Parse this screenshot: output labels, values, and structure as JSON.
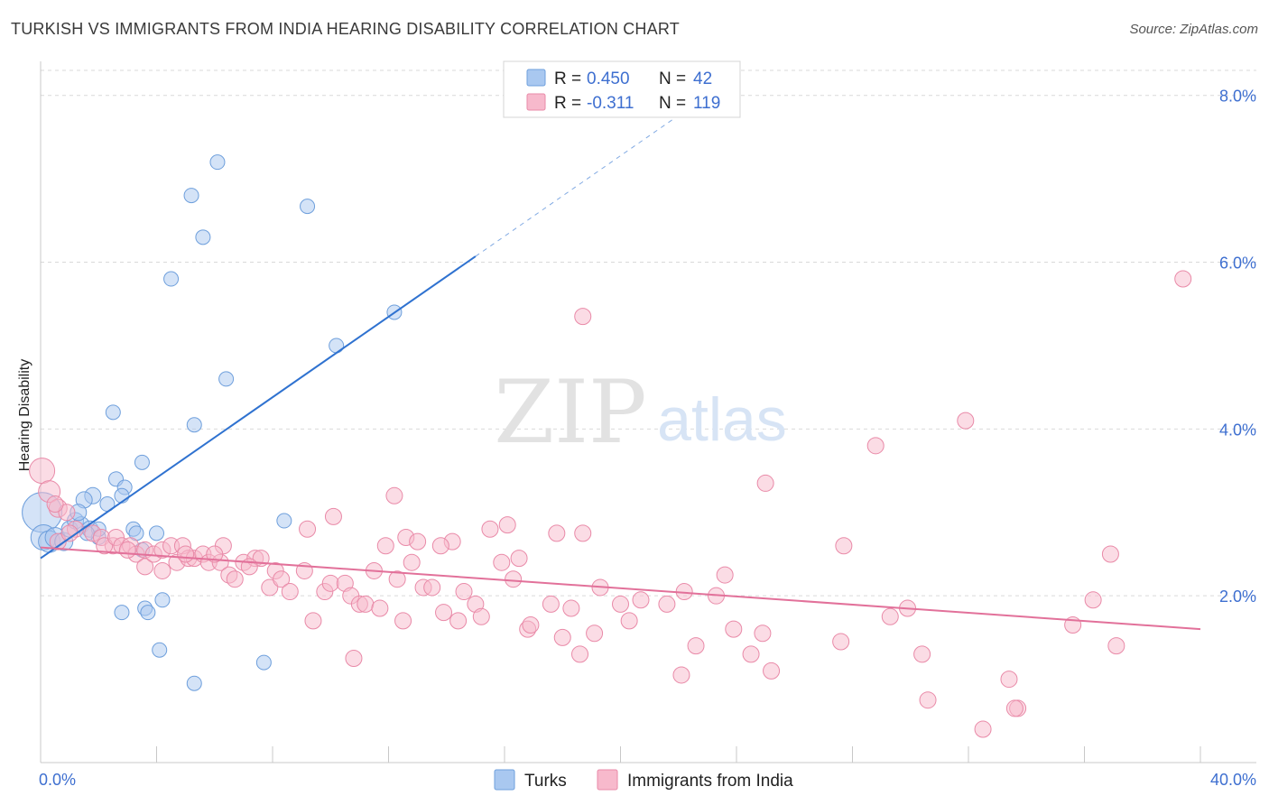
{
  "header": {
    "title": "TURKISH VS IMMIGRANTS FROM INDIA HEARING DISABILITY CORRELATION CHART",
    "source": "Source: ZipAtlas.com"
  },
  "watermark": {
    "zip": "ZIP",
    "atlas": "atlas"
  },
  "colors": {
    "blue_fill": "#a9c8f0",
    "blue_stroke": "#6e9fdc",
    "blue_line": "#2f72d0",
    "pink_fill": "#f7b9cc",
    "pink_stroke": "#e98aa8",
    "pink_line": "#e2719a",
    "axis_text": "#3e6fd0",
    "grid": "#d9d9d9"
  },
  "legend_box": {
    "rows": [
      {
        "r_label": "R = ",
        "r_value": "0.450",
        "n_label": "N = ",
        "n_value": "42",
        "series": "Turks"
      },
      {
        "r_label": "R = ",
        "r_value": "-0.311",
        "n_label": "N = ",
        "n_value": "119",
        "series": "Immigrants from India"
      }
    ]
  },
  "chart_data": {
    "type": "scatter",
    "title": "TURKISH VS IMMIGRANTS FROM INDIA HEARING DISABILITY CORRELATION CHART",
    "xlabel": "",
    "ylabel": "Hearing Disability",
    "xlim": [
      0,
      40
    ],
    "ylim": [
      0,
      8.3
    ],
    "x_tick_labels": [
      "0.0%",
      "40.0%"
    ],
    "y_ticks": [
      2,
      4,
      6,
      8
    ],
    "y_tick_labels": [
      "2.0%",
      "4.0%",
      "6.0%",
      "8.0%"
    ],
    "grid": true,
    "legend_position": "bottom-center",
    "series": [
      {
        "name": "Turks",
        "color": "#a9c8f0",
        "r": 0.45,
        "n": 42,
        "trend": {
          "x0": 0,
          "y0": 2.45,
          "x1": 15.0,
          "y1": 6.07,
          "dash_to_x": 22.5
        },
        "points": [
          [
            0.05,
            3.0,
            22
          ],
          [
            0.1,
            2.7,
            14
          ],
          [
            0.3,
            2.65,
            12
          ],
          [
            0.5,
            2.7,
            11
          ],
          [
            0.8,
            2.65,
            10
          ],
          [
            1.0,
            2.8,
            9
          ],
          [
            1.2,
            2.9,
            9
          ],
          [
            1.4,
            2.85,
            9
          ],
          [
            1.7,
            2.8,
            9
          ],
          [
            1.8,
            3.2,
            9
          ],
          [
            1.5,
            3.15,
            9
          ],
          [
            1.3,
            3.0,
            9
          ],
          [
            2.0,
            2.7,
            8
          ],
          [
            2.3,
            3.1,
            8
          ],
          [
            2.6,
            3.4,
            8
          ],
          [
            2.9,
            3.3,
            8
          ],
          [
            2.8,
            3.2,
            8
          ],
          [
            3.2,
            2.8,
            8
          ],
          [
            3.3,
            2.75,
            8
          ],
          [
            3.5,
            2.55,
            8
          ],
          [
            4.0,
            2.75,
            8
          ],
          [
            3.5,
            3.6,
            8
          ],
          [
            2.5,
            4.2,
            8
          ],
          [
            3.6,
            1.85,
            8
          ],
          [
            3.7,
            1.8,
            8
          ],
          [
            2.8,
            1.8,
            8
          ],
          [
            4.2,
            1.95,
            8
          ],
          [
            4.1,
            1.35,
            8
          ],
          [
            5.3,
            0.95,
            8
          ],
          [
            7.7,
            1.2,
            8
          ],
          [
            5.3,
            4.05,
            8
          ],
          [
            6.4,
            4.6,
            8
          ],
          [
            4.5,
            5.8,
            8
          ],
          [
            5.6,
            6.3,
            8
          ],
          [
            5.2,
            6.8,
            8
          ],
          [
            6.1,
            7.2,
            8
          ],
          [
            9.2,
            6.67,
            8
          ],
          [
            10.2,
            5.0,
            8
          ],
          [
            12.2,
            5.4,
            8
          ],
          [
            8.4,
            2.9,
            8
          ],
          [
            2.0,
            2.8,
            8
          ],
          [
            1.6,
            2.75,
            8
          ]
        ]
      },
      {
        "name": "Immigrants from India",
        "color": "#f7b9cc",
        "r": -0.311,
        "n": 119,
        "trend": {
          "x0": 0,
          "y0": 2.58,
          "x1": 40.0,
          "y1": 1.6
        },
        "points": [
          [
            0.05,
            3.5,
            14
          ],
          [
            0.3,
            3.25,
            12
          ],
          [
            0.6,
            3.05,
            10
          ],
          [
            0.9,
            3.0,
            9
          ],
          [
            0.6,
            2.65,
            9
          ],
          [
            1.2,
            2.8,
            9
          ],
          [
            1.8,
            2.75,
            9
          ],
          [
            2.1,
            2.7,
            9
          ],
          [
            2.5,
            2.6,
            9
          ],
          [
            2.2,
            2.6,
            9
          ],
          [
            2.6,
            2.7,
            9
          ],
          [
            2.8,
            2.6,
            9
          ],
          [
            3.1,
            2.6,
            9
          ],
          [
            3.3,
            2.5,
            9
          ],
          [
            3.6,
            2.55,
            9
          ],
          [
            3.6,
            2.35,
            9
          ],
          [
            3.9,
            2.5,
            9
          ],
          [
            4.2,
            2.55,
            9
          ],
          [
            4.2,
            2.3,
            9
          ],
          [
            4.5,
            2.6,
            9
          ],
          [
            4.7,
            2.4,
            9
          ],
          [
            4.9,
            2.6,
            9
          ],
          [
            5.1,
            2.45,
            9
          ],
          [
            5.3,
            2.45,
            9
          ],
          [
            5.6,
            2.5,
            9
          ],
          [
            5.8,
            2.4,
            9
          ],
          [
            6.2,
            2.4,
            9
          ],
          [
            6.3,
            2.6,
            9
          ],
          [
            6.5,
            2.25,
            9
          ],
          [
            6.7,
            2.2,
            9
          ],
          [
            7.0,
            2.4,
            9
          ],
          [
            7.4,
            2.45,
            9
          ],
          [
            7.6,
            2.45,
            9
          ],
          [
            7.9,
            2.1,
            9
          ],
          [
            8.1,
            2.3,
            9
          ],
          [
            8.3,
            2.2,
            9
          ],
          [
            8.6,
            2.05,
            9
          ],
          [
            9.1,
            2.3,
            9
          ],
          [
            9.2,
            2.8,
            9
          ],
          [
            9.4,
            1.7,
            9
          ],
          [
            9.8,
            2.05,
            9
          ],
          [
            10.0,
            2.15,
            9
          ],
          [
            10.1,
            2.95,
            9
          ],
          [
            10.5,
            2.15,
            9
          ],
          [
            10.7,
            2.0,
            9
          ],
          [
            11.0,
            1.9,
            9
          ],
          [
            11.2,
            1.9,
            9
          ],
          [
            11.5,
            2.3,
            9
          ],
          [
            11.7,
            1.85,
            9
          ],
          [
            11.9,
            2.6,
            9
          ],
          [
            12.2,
            3.2,
            9
          ],
          [
            12.3,
            2.2,
            9
          ],
          [
            12.6,
            2.7,
            9
          ],
          [
            12.8,
            2.4,
            9
          ],
          [
            13.0,
            2.65,
            9
          ],
          [
            13.2,
            2.1,
            9
          ],
          [
            13.5,
            2.1,
            9
          ],
          [
            13.9,
            1.8,
            9
          ],
          [
            14.4,
            1.7,
            9
          ],
          [
            14.6,
            2.05,
            9
          ],
          [
            15.0,
            1.9,
            9
          ],
          [
            15.2,
            1.75,
            9
          ],
          [
            15.5,
            2.8,
            9
          ],
          [
            15.9,
            2.4,
            9
          ],
          [
            16.1,
            2.85,
            9
          ],
          [
            16.3,
            2.2,
            9
          ],
          [
            16.5,
            2.45,
            9
          ],
          [
            16.8,
            1.6,
            9
          ],
          [
            16.9,
            1.65,
            9
          ],
          [
            17.6,
            1.9,
            9
          ],
          [
            17.8,
            2.75,
            9
          ],
          [
            18.0,
            1.5,
            9
          ],
          [
            18.3,
            1.85,
            9
          ],
          [
            18.6,
            1.3,
            9
          ],
          [
            18.7,
            2.75,
            9
          ],
          [
            19.1,
            1.55,
            9
          ],
          [
            19.3,
            2.1,
            9
          ],
          [
            20.0,
            1.9,
            9
          ],
          [
            20.3,
            1.7,
            9
          ],
          [
            20.7,
            1.95,
            9
          ],
          [
            21.6,
            1.9,
            9
          ],
          [
            22.1,
            1.05,
            9
          ],
          [
            22.2,
            2.05,
            9
          ],
          [
            22.6,
            1.4,
            9
          ],
          [
            23.3,
            2.0,
            9
          ],
          [
            23.6,
            2.25,
            9
          ],
          [
            23.9,
            1.6,
            9
          ],
          [
            24.5,
            1.3,
            9
          ],
          [
            24.9,
            1.55,
            9
          ],
          [
            25.2,
            1.1,
            9
          ],
          [
            25.0,
            3.35,
            9
          ],
          [
            27.7,
            2.6,
            9
          ],
          [
            27.6,
            1.45,
            9
          ],
          [
            28.8,
            3.8,
            9
          ],
          [
            29.3,
            1.75,
            9
          ],
          [
            29.9,
            1.85,
            9
          ],
          [
            30.6,
            0.75,
            9
          ],
          [
            30.4,
            1.3,
            9
          ],
          [
            31.9,
            4.1,
            9
          ],
          [
            32.5,
            0.4,
            9
          ],
          [
            33.4,
            1.0,
            9
          ],
          [
            33.7,
            0.65,
            9
          ],
          [
            33.6,
            0.65,
            9
          ],
          [
            35.6,
            1.65,
            9
          ],
          [
            36.3,
            1.95,
            9
          ],
          [
            36.9,
            2.5,
            9
          ],
          [
            37.1,
            1.4,
            9
          ],
          [
            39.4,
            5.8,
            9
          ],
          [
            18.7,
            5.35,
            9
          ],
          [
            10.8,
            1.25,
            9
          ],
          [
            0.5,
            3.1,
            9
          ],
          [
            1.0,
            2.75,
            9
          ],
          [
            7.2,
            2.35,
            9
          ],
          [
            6.0,
            2.5,
            9
          ],
          [
            3.0,
            2.55,
            9
          ],
          [
            5.0,
            2.5,
            9
          ],
          [
            14.2,
            2.65,
            9
          ],
          [
            13.8,
            2.6,
            9
          ],
          [
            12.5,
            1.7,
            9
          ]
        ]
      }
    ]
  }
}
